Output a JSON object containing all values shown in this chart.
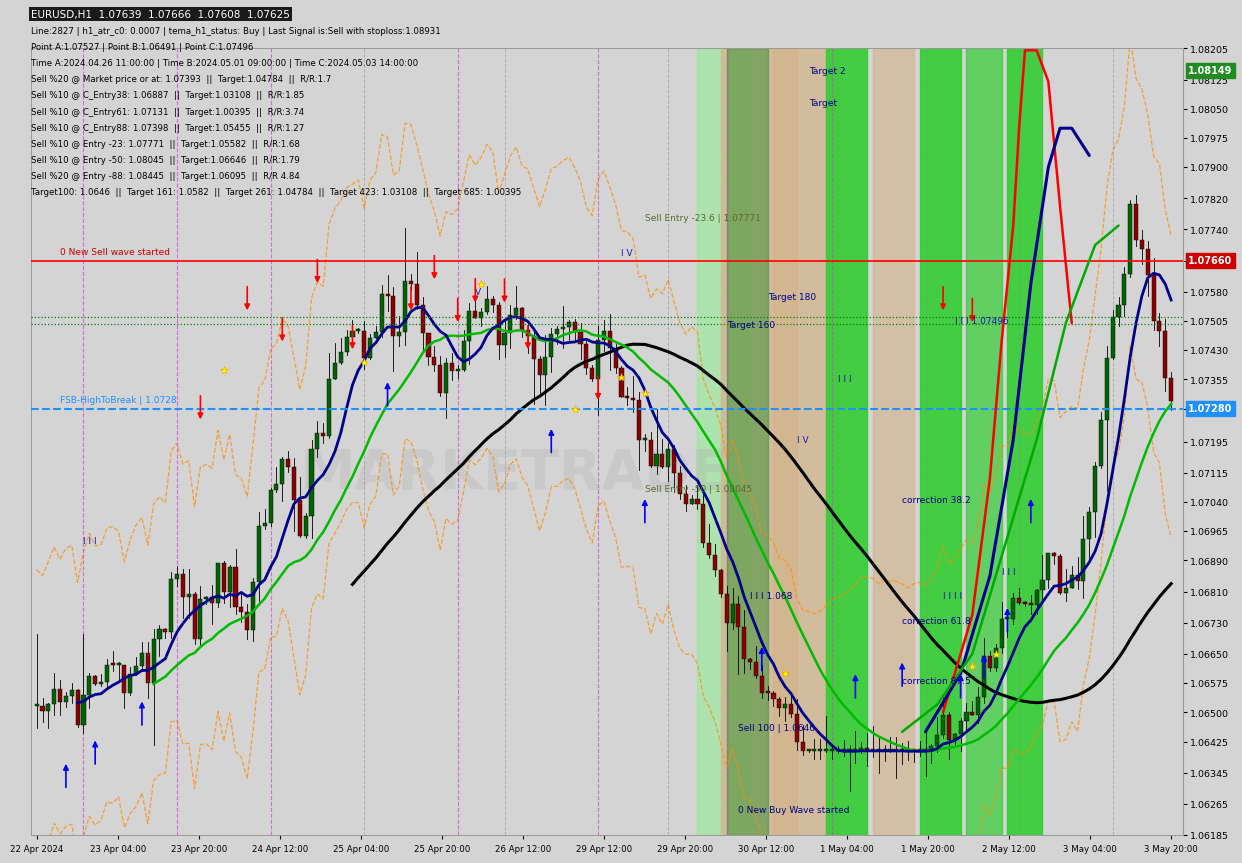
{
  "title": "EURUSD,H1  1.07639  1.07666  1.07608  1.07625",
  "info_line1": "Line:2827 | h1_atr_c0: 0.0007 | tema_h1_status: Buy | Last Signal is:Sell with stoploss:1.08931",
  "info_line2": "Point A:1.07527 | Point B:1.06491 | Point C:1.07496",
  "info_line3": "Time A:2024.04.26 11:00:00 | Time B:2024.05.01 09:00:00 | Time C:2024.05.03 14:00:00",
  "info_line4": "Sell %20 @ Market price or at: 1.07393  ||  Target:1.04784  ||  R/R:1.7",
  "info_line5": "Sell %10 @ C_Entry38: 1.06887  ||  Target:1.03108  ||  R/R:1.85",
  "info_line6": "Sell %10 @ C_Entry61: 1.07131  ||  Target:1.00395  ||  R/R:3.74",
  "info_line7": "Sell %10 @ C_Entry88: 1.07398  ||  Target:1.05455  ||  R/R:1.27",
  "info_line8": "Sell %10 @ Entry -23: 1.07771  ||  Target:1.05582  ||  R/R:1.68",
  "info_line9": "Sell %10 @ Entry -50: 1.08045  ||  Target:1.06646  ||  R/R:1.79",
  "info_line10": "Sell %20 @ Entry -88: 1.08445  ||  Target:1.06095  ||  R/R 4.84",
  "info_line11": "Target100: 1.0646  ||  Target 161: 1.0582  ||  Target 261: 1.04784  ||  Target 423: 1.03108  ||  Target 685: 1.00395",
  "x_labels": [
    "22 Apr 2024",
    "23 Apr 04:00",
    "23 Apr 20:00",
    "24 Apr 12:00",
    "25 Apr 04:00",
    "25 Apr 20:00",
    "26 Apr 12:00",
    "29 Apr 12:00",
    "29 Apr 20:00",
    "30 Apr 12:00",
    "1 May 04:00",
    "1 May 20:00",
    "2 May 12:00",
    "3 May 04:00",
    "3 May 20:00"
  ],
  "y_min": 1.06185,
  "y_max": 1.08205,
  "y_ticks": [
    1.06185,
    1.06265,
    1.06345,
    1.06425,
    1.065,
    1.06575,
    1.0665,
    1.0673,
    1.0681,
    1.0689,
    1.06965,
    1.0704,
    1.07115,
    1.07195,
    1.0728,
    1.07355,
    1.0743,
    1.07505,
    1.0758,
    1.0766,
    1.0774,
    1.0782,
    1.079,
    1.07975,
    1.0805,
    1.08125,
    1.08205
  ],
  "current_price": 1.08149,
  "fsb_level": 1.0728,
  "red_line_level": 1.0766,
  "green_dashed_level": 1.07496,
  "watermark": "MARKETRADE",
  "bg_color": "#d4d4d4",
  "plot_bg": "#d4d4d4"
}
